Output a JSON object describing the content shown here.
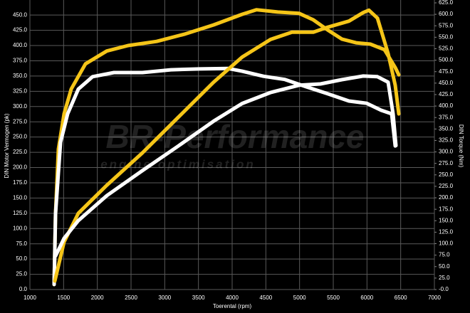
{
  "chart_data": {
    "type": "line",
    "xlabel": "Toerental (rpm)",
    "ylabel": "DIN Motor Vermogen (pk)",
    "y2label": "DIN Torque (Nm)",
    "watermark": "BR-Performance",
    "watermark_subtitle": "engine optimisation",
    "xlim": [
      1000,
      7000
    ],
    "xticks": [
      1000,
      1500,
      2000,
      2500,
      3000,
      3500,
      4000,
      4500,
      5000,
      5500,
      6000,
      6500,
      7000
    ],
    "ylim": [
      0,
      470
    ],
    "yticks": [
      {
        "value": 0,
        "label": "0.0"
      },
      {
        "value": 25,
        "label": "25.0"
      },
      {
        "value": 50,
        "label": "50.0"
      },
      {
        "value": 75,
        "label": "75.0"
      },
      {
        "value": 100,
        "label": "100.0"
      },
      {
        "value": 125,
        "label": "125.0"
      },
      {
        "value": 150,
        "label": "150.0"
      },
      {
        "value": 175,
        "label": "175.0"
      },
      {
        "value": 200,
        "label": "200.0"
      },
      {
        "value": 225,
        "label": "225.0"
      },
      {
        "value": 250,
        "label": "250.0"
      },
      {
        "value": 275,
        "label": "275.0"
      },
      {
        "value": 300,
        "label": "300.0"
      },
      {
        "value": 325,
        "label": "325.0"
      },
      {
        "value": 350,
        "label": "350.0"
      },
      {
        "value": 375,
        "label": "375.0"
      },
      {
        "value": 400,
        "label": "400.0"
      },
      {
        "value": 425,
        "label": "425.0"
      },
      {
        "value": 450,
        "label": "450.0"
      }
    ],
    "y2lim": [
      0,
      625
    ],
    "y2ticks": [
      {
        "value": 0,
        "label": "-0.0"
      },
      {
        "value": 25,
        "label": "25.0"
      },
      {
        "value": 50,
        "label": "50.0"
      },
      {
        "value": 75,
        "label": "75.0"
      },
      {
        "value": 100,
        "label": "100.0"
      },
      {
        "value": 125,
        "label": "125.0"
      },
      {
        "value": 150,
        "label": "150.0"
      },
      {
        "value": 175,
        "label": "175.0"
      },
      {
        "value": 200,
        "label": "200.0"
      },
      {
        "value": 225,
        "label": "225.0"
      },
      {
        "value": 250,
        "label": "250.0"
      },
      {
        "value": 275,
        "label": "275.0"
      },
      {
        "value": 300,
        "label": "300.0"
      },
      {
        "value": 325,
        "label": "325.0"
      },
      {
        "value": 350,
        "label": "350.0"
      },
      {
        "value": 375,
        "label": "375.0"
      },
      {
        "value": 400,
        "label": "400.0"
      },
      {
        "value": 425,
        "label": "425.0"
      },
      {
        "value": 450,
        "label": "450.0"
      },
      {
        "value": 475,
        "label": "475.0"
      },
      {
        "value": 500,
        "label": "500.0"
      },
      {
        "value": 525,
        "label": "525.0"
      },
      {
        "value": 550,
        "label": "550.0"
      },
      {
        "value": 575,
        "label": "575.0"
      },
      {
        "value": 600,
        "label": "600.0"
      },
      {
        "value": 625,
        "label": "625.0"
      }
    ],
    "grid": true,
    "series": [
      {
        "color": "#f5c518",
        "axis": "y2",
        "x": [
          1359,
          1380,
          1423,
          1507,
          1613,
          1824,
          2141,
          2458,
          2880,
          3303,
          3725,
          4148,
          4359,
          4676,
          4993,
          5204,
          5416,
          5627,
          5838,
          6049,
          6260,
          6419,
          6472
        ],
        "values": [
          11,
          166,
          306,
          383,
          437,
          492,
          520,
          532,
          541,
          557,
          577,
          600,
          610,
          605,
          602,
          588,
          566,
          546,
          538,
          535,
          523,
          484,
          468
        ]
      },
      {
        "color": "#ffffff",
        "axis": "y2",
        "x": [
          1359,
          1380,
          1454,
          1560,
          1718,
          1930,
          2247,
          2669,
          3092,
          3514,
          3937,
          4148,
          4465,
          4782,
          5099,
          5416,
          5732,
          5996,
          6208,
          6366,
          6419
        ],
        "values": [
          11,
          166,
          321,
          383,
          437,
          464,
          473,
          473,
          479,
          481,
          482,
          476,
          465,
          458,
          442,
          427,
          411,
          406,
          391,
          383,
          313
        ]
      },
      {
        "color": "#f5c518",
        "x": [
          1370,
          1507,
          1718,
          2141,
          2669,
          3197,
          3725,
          4148,
          4570,
          4887,
          5204,
          5416,
          5732,
          5944,
          6028,
          6155,
          6313,
          6419,
          6472
        ],
        "values": [
          14,
          78,
          125,
          171,
          224,
          282,
          340,
          381,
          410,
          422,
          422,
          430,
          440,
          454,
          458,
          445,
          387,
          335,
          288
        ]
      },
      {
        "color": "#ffffff",
        "x": [
          1380,
          1507,
          1718,
          2141,
          2669,
          3197,
          3725,
          4148,
          4570,
          4993,
          5310,
          5627,
          5944,
          6155,
          6313,
          6387,
          6430
        ],
        "values": [
          55,
          84,
          113,
          154,
          195,
          235,
          276,
          305,
          323,
          335,
          337,
          344,
          350,
          349,
          340,
          288,
          236
        ]
      }
    ]
  }
}
